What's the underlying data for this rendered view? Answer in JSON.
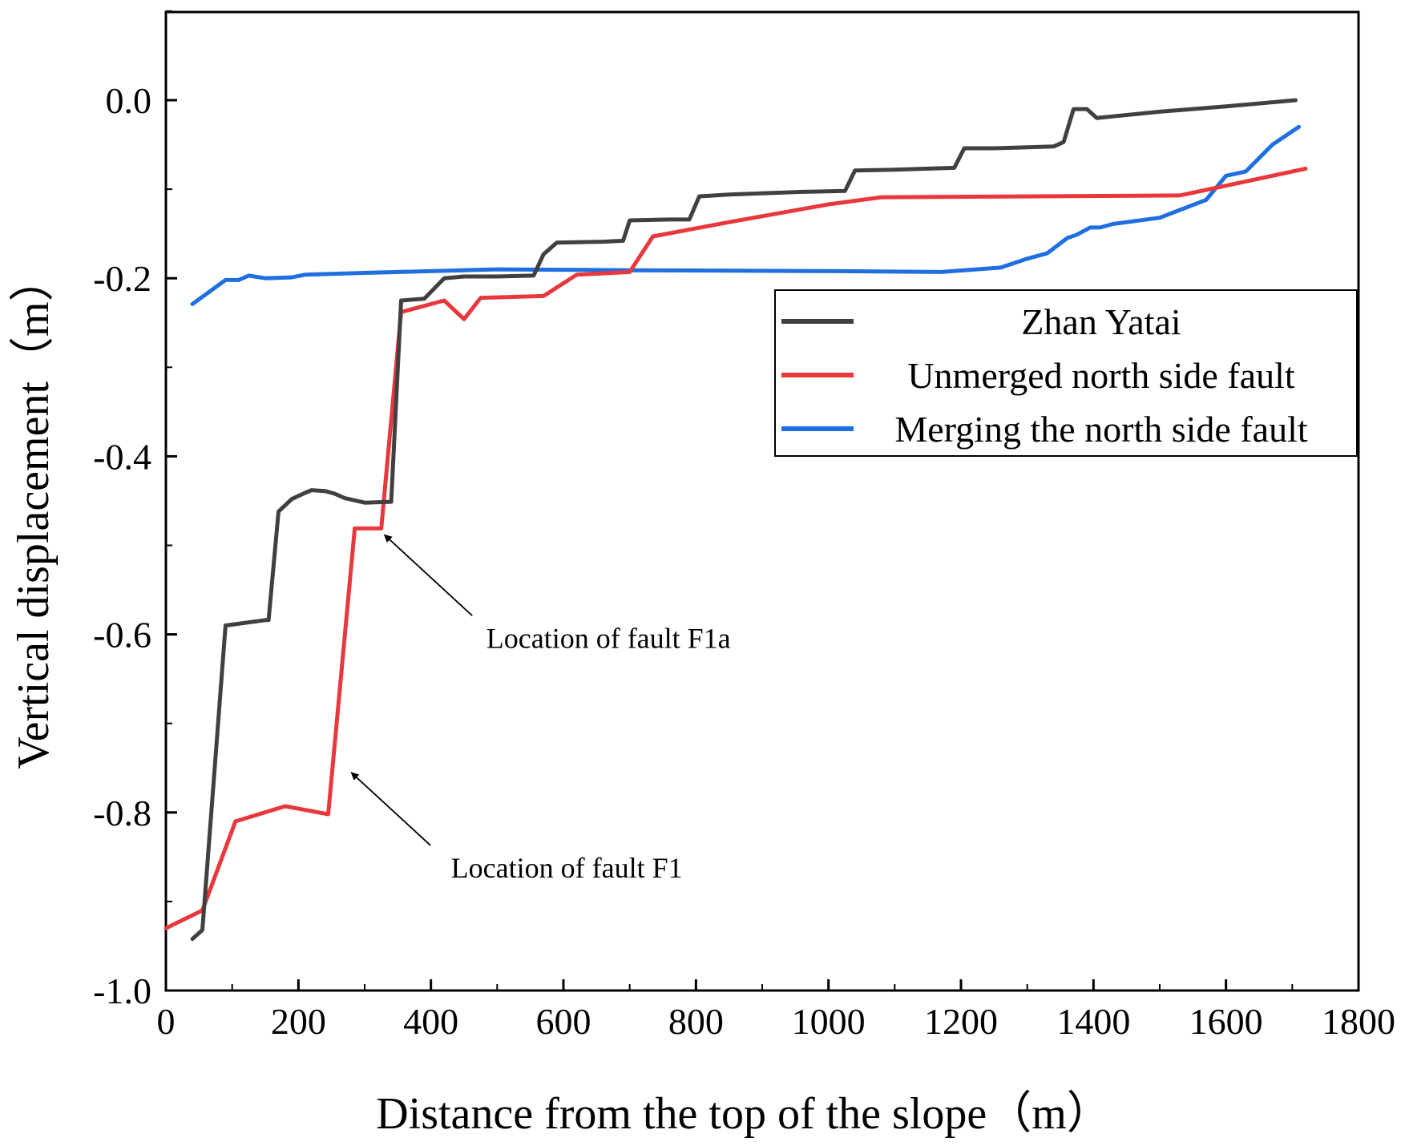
{
  "chart_data": {
    "type": "line",
    "title": "",
    "xlabel": "Distance from the top of the slope（m）",
    "ylabel": "Vertical displacement（m）",
    "xlim": [
      0,
      1800
    ],
    "ylim": [
      -1.0,
      0.1
    ],
    "xticks": [
      0,
      200,
      400,
      600,
      800,
      1000,
      1200,
      1400,
      1600,
      1800
    ],
    "yticks": [
      -1.0,
      -0.8,
      -0.6,
      -0.4,
      -0.2,
      0.0
    ],
    "xtick_labels": [
      "0",
      "200",
      "400",
      "600",
      "800",
      "1000",
      "1200",
      "1400",
      "1600",
      "1800"
    ],
    "ytick_labels": [
      "-1.0",
      "-0.8",
      "-0.6",
      "-0.4",
      "-0.2",
      "0.0"
    ],
    "grid": false,
    "legend_position": "right-middle",
    "series": [
      {
        "name": "Zhan Yatai",
        "color": "#404040",
        "points": [
          [
            40,
            -0.942
          ],
          [
            55,
            -0.932
          ],
          [
            90,
            -0.59
          ],
          [
            150,
            -0.584
          ],
          [
            155,
            -0.584
          ],
          [
            170,
            -0.462
          ],
          [
            190,
            -0.448
          ],
          [
            210,
            -0.441
          ],
          [
            220,
            -0.438
          ],
          [
            240,
            -0.439
          ],
          [
            255,
            -0.442
          ],
          [
            270,
            -0.447
          ],
          [
            300,
            -0.452
          ],
          [
            340,
            -0.451
          ],
          [
            355,
            -0.225
          ],
          [
            390,
            -0.223
          ],
          [
            420,
            -0.2
          ],
          [
            450,
            -0.198
          ],
          [
            500,
            -0.198
          ],
          [
            555,
            -0.197
          ],
          [
            570,
            -0.173
          ],
          [
            590,
            -0.16
          ],
          [
            660,
            -0.159
          ],
          [
            690,
            -0.158
          ],
          [
            700,
            -0.135
          ],
          [
            760,
            -0.134
          ],
          [
            790,
            -0.134
          ],
          [
            805,
            -0.108
          ],
          [
            850,
            -0.106
          ],
          [
            960,
            -0.103
          ],
          [
            1025,
            -0.102
          ],
          [
            1040,
            -0.079
          ],
          [
            1100,
            -0.078
          ],
          [
            1190,
            -0.076
          ],
          [
            1205,
            -0.054
          ],
          [
            1250,
            -0.054
          ],
          [
            1340,
            -0.052
          ],
          [
            1355,
            -0.047
          ],
          [
            1370,
            -0.01
          ],
          [
            1390,
            -0.01
          ],
          [
            1405,
            -0.02
          ],
          [
            1500,
            -0.013
          ],
          [
            1600,
            -0.007
          ],
          [
            1705,
            0.0
          ]
        ]
      },
      {
        "name": "Unmerged north side fault",
        "color": "#e8383d",
        "points": [
          [
            0,
            -0.93
          ],
          [
            55,
            -0.91
          ],
          [
            105,
            -0.81
          ],
          [
            180,
            -0.793
          ],
          [
            245,
            -0.802
          ],
          [
            285,
            -0.481
          ],
          [
            325,
            -0.481
          ],
          [
            355,
            -0.238
          ],
          [
            420,
            -0.225
          ],
          [
            450,
            -0.246
          ],
          [
            475,
            -0.222
          ],
          [
            570,
            -0.22
          ],
          [
            620,
            -0.196
          ],
          [
            700,
            -0.193
          ],
          [
            735,
            -0.153
          ],
          [
            850,
            -0.137
          ],
          [
            1000,
            -0.117
          ],
          [
            1080,
            -0.109
          ],
          [
            1530,
            -0.107
          ],
          [
            1600,
            -0.096
          ],
          [
            1720,
            -0.077
          ]
        ]
      },
      {
        "name": "Merging the north side fault",
        "color": "#1f6fe0",
        "points": [
          [
            40,
            -0.229
          ],
          [
            90,
            -0.202
          ],
          [
            110,
            -0.202
          ],
          [
            125,
            -0.197
          ],
          [
            150,
            -0.2
          ],
          [
            190,
            -0.199
          ],
          [
            210,
            -0.196
          ],
          [
            300,
            -0.194
          ],
          [
            500,
            -0.19
          ],
          [
            700,
            -0.191
          ],
          [
            1000,
            -0.192
          ],
          [
            1170,
            -0.193
          ],
          [
            1260,
            -0.188
          ],
          [
            1300,
            -0.178
          ],
          [
            1330,
            -0.172
          ],
          [
            1360,
            -0.155
          ],
          [
            1375,
            -0.151
          ],
          [
            1395,
            -0.143
          ],
          [
            1410,
            -0.143
          ],
          [
            1430,
            -0.139
          ],
          [
            1500,
            -0.132
          ],
          [
            1570,
            -0.112
          ],
          [
            1600,
            -0.085
          ],
          [
            1630,
            -0.08
          ],
          [
            1670,
            -0.05
          ],
          [
            1710,
            -0.03
          ]
        ]
      }
    ],
    "annotations": [
      {
        "text": "Location of fault F1a",
        "arrow_to": [
          325,
          -0.481
        ],
        "text_at": [
          668,
          -0.615
        ]
      },
      {
        "text": "Location of fault F1",
        "arrow_to": [
          275,
          -0.748
        ],
        "text_at": [
          605,
          -0.873
        ]
      }
    ]
  }
}
